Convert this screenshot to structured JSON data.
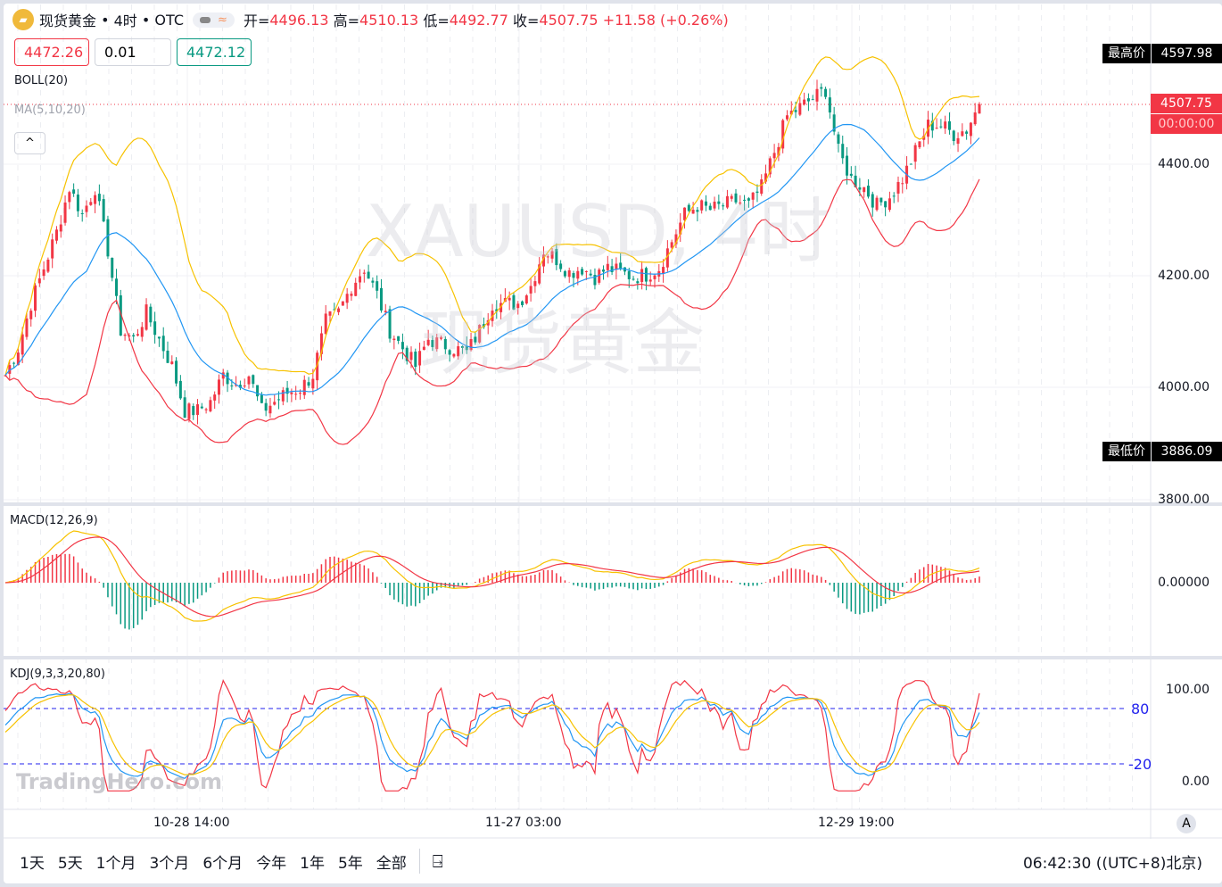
{
  "header": {
    "symbol": "现货黄金",
    "interval": "4时",
    "market": "OTC",
    "open_label": "开=",
    "open": "4496.13",
    "high_label": "高=",
    "high": "4510.13",
    "low_label": "低=",
    "low": "4492.77",
    "close_label": "收=",
    "close": "4507.75",
    "change": "+11.58 (+0.26%)",
    "logo_icon": "gold-bars-icon"
  },
  "trade": {
    "sell": "4472.26",
    "spread": "0.01",
    "buy": "4472.12"
  },
  "indicators": {
    "boll": "BOLL(20)",
    "ma": "MA(5,10,20)",
    "macd": "MACD(12,26,9)",
    "kdj": "KDJ(9,3,3,20,80)"
  },
  "watermark": {
    "symbol": "XAUUSD, 4时",
    "name": "现货黄金",
    "brand": "TradingHero.com"
  },
  "price_axis": {
    "high_label": "最高价",
    "high": "4597.98",
    "low_label": "最低价",
    "low": "3886.09",
    "last": "4507.75",
    "countdown": "00:00:00",
    "ticks": [
      "4400.00",
      "4200.00",
      "4000.00",
      "3800.00"
    ],
    "macd_tick": "0.00000",
    "kdj_ticks": [
      "100.00",
      "0.00"
    ],
    "kdj_levels": [
      "80",
      "20"
    ]
  },
  "time_axis": {
    "labels": [
      "10-28 14:00",
      "11-27 03:00",
      "12-29 19:00"
    ],
    "auto_button": "A"
  },
  "toolbar": {
    "ranges": [
      "1天",
      "5天",
      "1个月",
      "3个月",
      "6个月",
      "今年",
      "1年",
      "5年",
      "全部"
    ],
    "clock": "06:42:30 ((UTC+8)北京)"
  },
  "colors": {
    "up": "#f23645",
    "down": "#089981",
    "boll_upper": "#f7c200",
    "boll_lower": "#f23645",
    "boll_mid": "#2196f3"
  },
  "chart_data": {
    "type": "candlestick",
    "ylim": [
      3800,
      4650
    ],
    "close_approx": [
      4022,
      4070,
      4150,
      4214,
      4278,
      4358,
      4310,
      4358,
      4246,
      4102,
      4086,
      4134,
      4086,
      4038,
      3958,
      3958,
      3974,
      4022,
      4006,
      4022,
      3958,
      3974,
      3990,
      3998,
      4022,
      4118,
      4134,
      4182,
      4214,
      4166,
      4102,
      4070,
      4038,
      4086,
      4078,
      4070,
      4062,
      4102,
      4150,
      4150,
      4150,
      4182,
      4246,
      4230,
      4206,
      4214,
      4198,
      4214,
      4206,
      4198,
      4202,
      4214,
      4262,
      4310,
      4326,
      4318,
      4326,
      4334,
      4326,
      4358,
      4422,
      4486,
      4502,
      4518,
      4534,
      4422,
      4374,
      4358,
      4326,
      4342,
      4374,
      4422,
      4470,
      4470,
      4454,
      4462,
      4507.75
    ]
  }
}
